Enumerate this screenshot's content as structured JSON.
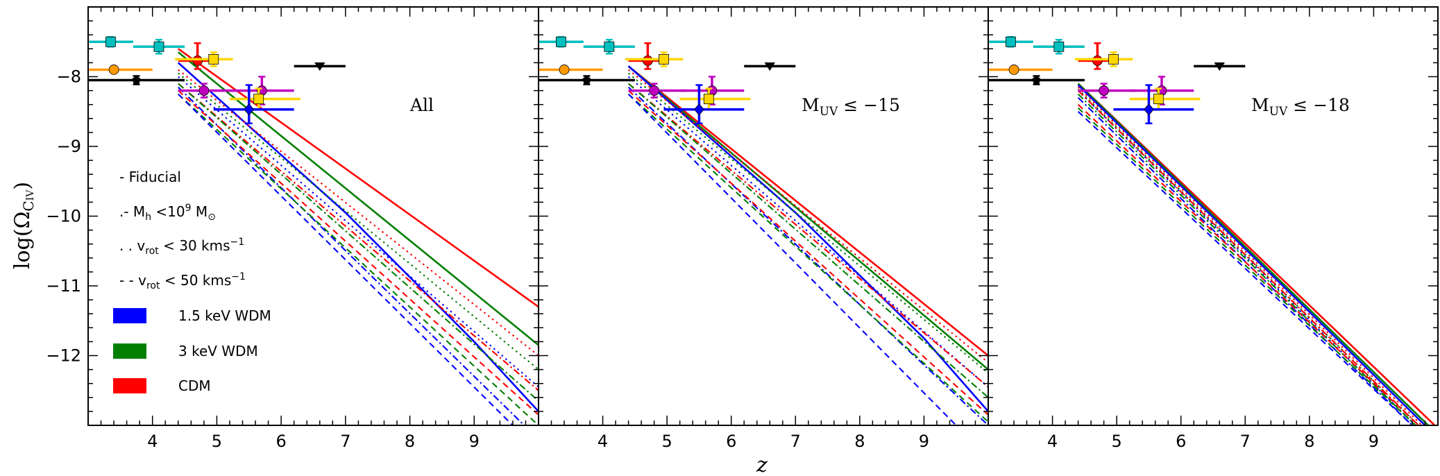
{
  "chart_data": {
    "type": "line",
    "xlabel": "z",
    "ylabel": "log(Ω",
    "ylabel_sub": "C",
    "ylabel_sub2": "IV",
    "xlim": [
      3.0,
      10.0
    ],
    "ylim": [
      -13.0,
      -7.0
    ],
    "x_ticks": [
      4,
      5,
      6,
      7,
      8,
      9
    ],
    "y_ticks": [
      -8,
      -9,
      -10,
      -11,
      -12
    ],
    "colors": {
      "WDM 1.5 keV": "#0000ff",
      "WDM 3 keV": "#007f00",
      "CDM": "#ff0000"
    },
    "legend": {
      "placement": "left of first panel",
      "linestyles": [
        {
          "style": "solid",
          "label": "- Fiducial"
        },
        {
          "style": "dashdot",
          "label": ".- M",
          "label_sub": "h",
          "label_rest": " <10",
          "label_sup": "9",
          "label_end": " M",
          "label_end_sub": "⊙"
        },
        {
          "style": "dotted",
          "label": ". .  v",
          "label_sub": "rot",
          "label_rest": " <  30 kms",
          "label_sup": "−1"
        },
        {
          "style": "dashed",
          "label": "- -  v",
          "label_sub": "rot",
          "label_rest": " <  50 kms",
          "label_sup": "−1"
        }
      ],
      "models": [
        {
          "label": "1.5 keV WDM",
          "color": "#0000ff"
        },
        {
          "label": "3 keV WDM",
          "color": "#007f00"
        },
        {
          "label": "CDM",
          "color": "#ff0000"
        }
      ]
    },
    "panels": [
      {
        "label": "All",
        "series": [
          {
            "model": "CDM",
            "style": "solid",
            "x": [
              4.4,
              10.0
            ],
            "y": [
              -7.6,
              -11.3
            ]
          },
          {
            "model": "WDM 3 keV",
            "style": "solid",
            "x": [
              4.4,
              10.0
            ],
            "y": [
              -7.65,
              -11.85
            ]
          },
          {
            "model": "WDM 1.5 keV",
            "style": "solid",
            "x": [
              4.4,
              7.0,
              9.0,
              10.0
            ],
            "y": [
              -7.8,
              -9.95,
              -11.8,
              -12.8
            ]
          },
          {
            "model": "CDM",
            "style": "dotted",
            "x": [
              4.4,
              10.0
            ],
            "y": [
              -7.9,
              -12.0
            ]
          },
          {
            "model": "WDM 3 keV",
            "style": "dotted",
            "x": [
              4.4,
              10.0
            ],
            "y": [
              -7.95,
              -12.2
            ]
          },
          {
            "model": "WDM 1.5 keV",
            "style": "dotted",
            "x": [
              4.4,
              10.0
            ],
            "y": [
              -8.0,
              -12.45
            ]
          },
          {
            "model": "CDM",
            "style": "dashdot",
            "x": [
              4.4,
              10.0
            ],
            "y": [
              -8.1,
              -12.5
            ]
          },
          {
            "model": "WDM 3 keV",
            "style": "dashdot",
            "x": [
              4.4,
              10.0
            ],
            "y": [
              -8.1,
              -12.65
            ]
          },
          {
            "model": "WDM 1.5 keV",
            "style": "dashdot",
            "x": [
              4.4,
              10.0
            ],
            "y": [
              -8.15,
              -13.2
            ]
          },
          {
            "model": "CDM",
            "style": "dashed",
            "x": [
              4.4,
              10.0
            ],
            "y": [
              -8.2,
              -12.85
            ]
          },
          {
            "model": "WDM 3 keV",
            "style": "dashed",
            "x": [
              4.4,
              10.0
            ],
            "y": [
              -8.25,
              -13.0
            ]
          },
          {
            "model": "WDM 1.5 keV",
            "style": "dashed",
            "x": [
              4.4,
              9.6
            ],
            "y": [
              -8.25,
              -13.0
            ]
          }
        ]
      },
      {
        "label": "M",
        "label_sub": "UV",
        "label_rest": " ≤ −15",
        "series": [
          {
            "model": "CDM",
            "style": "solid",
            "x": [
              4.4,
              10.0
            ],
            "y": [
              -7.85,
              -12.0
            ]
          },
          {
            "model": "WDM 3 keV",
            "style": "solid",
            "x": [
              4.4,
              10.0
            ],
            "y": [
              -7.85,
              -12.2
            ]
          },
          {
            "model": "WDM 1.5 keV",
            "style": "solid",
            "x": [
              4.4,
              7.0,
              9.0,
              10.0
            ],
            "y": [
              -7.85,
              -9.95,
              -11.75,
              -12.8
            ]
          },
          {
            "model": "CDM",
            "style": "dotted",
            "x": [
              4.4,
              10.0
            ],
            "y": [
              -7.9,
              -12.1
            ]
          },
          {
            "model": "WDM 3 keV",
            "style": "dotted",
            "x": [
              4.4,
              10.0
            ],
            "y": [
              -7.95,
              -12.25
            ]
          },
          {
            "model": "WDM 1.5 keV",
            "style": "dotted",
            "x": [
              4.4,
              10.0
            ],
            "y": [
              -8.0,
              -12.45
            ]
          },
          {
            "model": "CDM",
            "style": "dashdot",
            "x": [
              4.4,
              10.0
            ],
            "y": [
              -8.1,
              -12.45
            ]
          },
          {
            "model": "WDM 3 keV",
            "style": "dashdot",
            "x": [
              4.4,
              10.0
            ],
            "y": [
              -8.1,
              -12.6
            ]
          },
          {
            "model": "WDM 1.5 keV",
            "style": "dashdot",
            "x": [
              4.4,
              10.0
            ],
            "y": [
              -8.15,
              -13.0
            ]
          },
          {
            "model": "CDM",
            "style": "dashed",
            "x": [
              4.4,
              10.0
            ],
            "y": [
              -8.2,
              -12.85
            ]
          },
          {
            "model": "WDM 3 keV",
            "style": "dashed",
            "x": [
              4.4,
              10.0
            ],
            "y": [
              -8.25,
              -12.95
            ]
          },
          {
            "model": "WDM 1.5 keV",
            "style": "dashed",
            "x": [
              4.4,
              9.5
            ],
            "y": [
              -8.25,
              -13.0
            ]
          }
        ]
      },
      {
        "label": "M",
        "label_sub": "UV",
        "label_rest": " ≤ −18",
        "series": [
          {
            "model": "CDM",
            "style": "solid",
            "x": [
              4.4,
              9.95
            ],
            "y": [
              -8.1,
              -13.0
            ]
          },
          {
            "model": "WDM 3 keV",
            "style": "solid",
            "x": [
              4.4,
              9.85
            ],
            "y": [
              -8.1,
              -13.0
            ]
          },
          {
            "model": "WDM 1.5 keV",
            "style": "solid",
            "x": [
              4.4,
              9.8
            ],
            "y": [
              -8.12,
              -13.0
            ]
          },
          {
            "model": "CDM",
            "style": "dotted",
            "x": [
              4.4,
              9.75
            ],
            "y": [
              -8.15,
              -13.0
            ]
          },
          {
            "model": "WDM 3 keV",
            "style": "dotted",
            "x": [
              4.4,
              9.7
            ],
            "y": [
              -8.18,
              -13.0
            ]
          },
          {
            "model": "WDM 1.5 keV",
            "style": "dotted",
            "x": [
              4.4,
              9.65
            ],
            "y": [
              -8.2,
              -13.0
            ]
          },
          {
            "model": "CDM",
            "style": "dashdot",
            "x": [
              4.4,
              9.7
            ],
            "y": [
              -8.2,
              -13.0
            ]
          },
          {
            "model": "WDM 3 keV",
            "style": "dashdot",
            "x": [
              4.4,
              9.65
            ],
            "y": [
              -8.25,
              -13.0
            ]
          },
          {
            "model": "WDM 1.5 keV",
            "style": "dashdot",
            "x": [
              4.4,
              9.6
            ],
            "y": [
              -8.3,
              -13.0
            ]
          },
          {
            "model": "CDM",
            "style": "dashed",
            "x": [
              4.4,
              9.7
            ],
            "y": [
              -8.4,
              -13.0
            ]
          },
          {
            "model": "WDM 3 keV",
            "style": "dashed",
            "x": [
              4.4,
              9.65
            ],
            "y": [
              -8.45,
              -13.0
            ]
          },
          {
            "model": "WDM 1.5 keV",
            "style": "dashed",
            "x": [
              4.4,
              9.6
            ],
            "y": [
              -8.5,
              -13.0
            ]
          }
        ]
      }
    ],
    "observations": [
      {
        "marker": "square",
        "color": "#00bfbf",
        "z": 3.35,
        "y": -7.5,
        "zerr": [
          0.35,
          0.35
        ],
        "yerr": [
          0.07,
          0.07
        ]
      },
      {
        "marker": "square",
        "color": "#00bfbf",
        "z": 4.1,
        "y": -7.57,
        "zerr": [
          0.4,
          0.4
        ],
        "yerr": [
          0.1,
          0.1
        ]
      },
      {
        "marker": "circle",
        "color": "#ff9900",
        "z": 3.4,
        "y": -7.9,
        "zerr": [
          0.4,
          0.6
        ],
        "yerr": [
          0.0,
          0.0
        ]
      },
      {
        "marker": "pentagon",
        "color": "#000000",
        "z": 3.75,
        "y": -8.05,
        "zerr": [
          0.75,
          0.75
        ],
        "yerr": [
          0.06,
          0.06
        ]
      },
      {
        "marker": "circle",
        "color": "#ff0000",
        "z": 4.7,
        "y": -7.77,
        "zerr": [
          0.3,
          0.3
        ],
        "yerr": [
          0.12,
          0.25
        ]
      },
      {
        "marker": "square",
        "color": "#ffd700",
        "z": 4.95,
        "y": -7.75,
        "zerr": [
          0.6,
          0.3
        ],
        "yerr": [
          0.1,
          0.1
        ]
      },
      {
        "marker": "triangle-down",
        "color": "#000000",
        "z": 6.6,
        "y": -7.85,
        "zerr": [
          0.4,
          0.4
        ],
        "yerr": [
          0.0,
          0.0
        ]
      },
      {
        "marker": "circle",
        "color": "#bf00bf",
        "z": 4.8,
        "y": -8.2,
        "zerr": [
          0.4,
          0.5
        ],
        "yerr": [
          0.1,
          0.1
        ]
      },
      {
        "marker": "circle",
        "color": "#bf00bf",
        "z": 5.7,
        "y": -8.2,
        "zerr": [
          0.5,
          0.5
        ],
        "yerr": [
          0.2,
          0.2
        ]
      },
      {
        "marker": "square",
        "color": "#ffd700",
        "z": 5.65,
        "y": -8.32,
        "zerr": [
          0.45,
          0.65
        ],
        "yerr": [
          0.15,
          0.15
        ]
      },
      {
        "marker": "diamond",
        "color": "#0000ff",
        "z": 5.5,
        "y": -8.47,
        "zerr": [
          0.55,
          0.7
        ],
        "yerr": [
          0.2,
          0.35
        ]
      }
    ]
  }
}
